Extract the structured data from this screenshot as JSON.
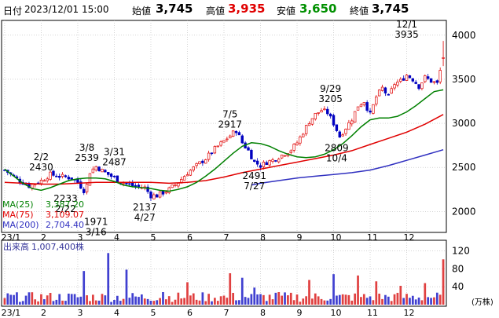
{
  "header": {
    "date_label": "日付",
    "datetime": "2023/12/01 15:00",
    "open_label": "始値",
    "open_value": "3,745",
    "high_label": "高値",
    "high_value": "3,935",
    "low_label": "安値",
    "low_value": "3,650",
    "close_label": "終値",
    "close_value": "3,745"
  },
  "colors": {
    "candle_up": "#e00000",
    "candle_down": "#0000c0",
    "ma25": "#008000",
    "ma75": "#e00000",
    "ma200": "#3030c0",
    "volume_up": "#e04040",
    "volume_down": "#4040d0"
  },
  "chart_data": [
    {
      "type": "candlestick",
      "x_ticks": [
        "23/1",
        "2",
        "3",
        "4",
        "5",
        "6",
        "7",
        "8",
        "9",
        "10",
        "11",
        "12"
      ],
      "y_ticks": [
        2000,
        2500,
        3000,
        3500,
        4000
      ],
      "ylim": [
        1780,
        4150
      ],
      "grid": true,
      "legend_position": "bottom-left",
      "series": [
        {
          "name": "MA(25)",
          "value": "3,387.20",
          "points": [
            [
              0,
              2480
            ],
            [
              3,
              2400
            ],
            [
              6,
              2320
            ],
            [
              9,
              2260
            ],
            [
              12,
              2240
            ],
            [
              15,
              2270
            ],
            [
              18,
              2310
            ],
            [
              21,
              2350
            ],
            [
              24,
              2370
            ],
            [
              27,
              2380
            ],
            [
              30,
              2380
            ],
            [
              33,
              2370
            ],
            [
              36,
              2340
            ],
            [
              39,
              2300
            ],
            [
              42,
              2280
            ],
            [
              45,
              2270
            ],
            [
              48,
              2260
            ],
            [
              51,
              2240
            ],
            [
              54,
              2230
            ],
            [
              57,
              2250
            ],
            [
              60,
              2280
            ],
            [
              63,
              2330
            ],
            [
              66,
              2400
            ],
            [
              69,
              2480
            ],
            [
              72,
              2570
            ],
            [
              75,
              2660
            ],
            [
              78,
              2740
            ],
            [
              81,
              2780
            ],
            [
              84,
              2770
            ],
            [
              87,
              2740
            ],
            [
              90,
              2690
            ],
            [
              93,
              2650
            ],
            [
              96,
              2620
            ],
            [
              99,
              2610
            ],
            [
              102,
              2620
            ],
            [
              105,
              2650
            ],
            [
              108,
              2700
            ],
            [
              111,
              2770
            ],
            [
              114,
              2860
            ],
            [
              117,
              2960
            ],
            [
              120,
              3040
            ],
            [
              123,
              3060
            ],
            [
              126,
              3060
            ],
            [
              129,
              3080
            ],
            [
              132,
              3130
            ],
            [
              135,
              3200
            ],
            [
              138,
              3280
            ],
            [
              141,
              3360
            ],
            [
              144,
              3380
            ]
          ]
        },
        {
          "name": "MA(75)",
          "value": "3,109.07",
          "points": [
            [
              0,
              2330
            ],
            [
              6,
              2320
            ],
            [
              12,
              2310
            ],
            [
              18,
              2310
            ],
            [
              24,
              2320
            ],
            [
              30,
              2330
            ],
            [
              36,
              2330
            ],
            [
              42,
              2330
            ],
            [
              48,
              2330
            ],
            [
              54,
              2320
            ],
            [
              60,
              2330
            ],
            [
              66,
              2350
            ],
            [
              72,
              2390
            ],
            [
              78,
              2440
            ],
            [
              84,
              2480
            ],
            [
              90,
              2520
            ],
            [
              96,
              2560
            ],
            [
              102,
              2600
            ],
            [
              108,
              2640
            ],
            [
              114,
              2690
            ],
            [
              120,
              2760
            ],
            [
              126,
              2830
            ],
            [
              132,
              2900
            ],
            [
              138,
              2990
            ],
            [
              144,
              3100
            ]
          ]
        },
        {
          "name": "MA(200)",
          "value": "2,704.40",
          "points": [
            [
              81,
              2300
            ],
            [
              84,
              2320
            ],
            [
              90,
              2350
            ],
            [
              96,
              2380
            ],
            [
              102,
              2400
            ],
            [
              108,
              2420
            ],
            [
              114,
              2440
            ],
            [
              120,
              2470
            ],
            [
              126,
              2520
            ],
            [
              132,
              2580
            ],
            [
              138,
              2640
            ],
            [
              144,
              2700
            ]
          ]
        }
      ],
      "close_waypoints": [
        [
          0,
          2470
        ],
        [
          4,
          2370
        ],
        [
          8,
          2290
        ],
        [
          12,
          2350
        ],
        [
          15,
          2420
        ],
        [
          18,
          2400
        ],
        [
          22,
          2380
        ],
        [
          24,
          2330
        ],
        [
          26,
          2240
        ],
        [
          27,
          2300
        ],
        [
          28,
          2450
        ],
        [
          30,
          2510
        ],
        [
          33,
          2440
        ],
        [
          35,
          2400
        ],
        [
          38,
          2340
        ],
        [
          42,
          2290
        ],
        [
          46,
          2270
        ],
        [
          48,
          2180
        ],
        [
          50,
          2180
        ],
        [
          54,
          2250
        ],
        [
          57,
          2330
        ],
        [
          60,
          2440
        ],
        [
          63,
          2520
        ],
        [
          66,
          2600
        ],
        [
          69,
          2710
        ],
        [
          72,
          2800
        ],
        [
          75,
          2890
        ],
        [
          76,
          2920
        ],
        [
          78,
          2780
        ],
        [
          80,
          2690
        ],
        [
          82,
          2560
        ],
        [
          84,
          2520
        ],
        [
          86,
          2560
        ],
        [
          88,
          2580
        ],
        [
          90,
          2620
        ],
        [
          92,
          2660
        ],
        [
          94,
          2700
        ],
        [
          96,
          2780
        ],
        [
          98,
          2900
        ],
        [
          100,
          3020
        ],
        [
          102,
          3100
        ],
        [
          104,
          3150
        ],
        [
          106,
          3120
        ],
        [
          108,
          3000
        ],
        [
          110,
          2850
        ],
        [
          112,
          2950
        ],
        [
          114,
          3050
        ],
        [
          116,
          3200
        ],
        [
          118,
          3250
        ],
        [
          120,
          3100
        ],
        [
          122,
          3300
        ],
        [
          124,
          3400
        ],
        [
          126,
          3300
        ],
        [
          128,
          3450
        ],
        [
          130,
          3480
        ],
        [
          132,
          3550
        ],
        [
          134,
          3500
        ],
        [
          136,
          3420
        ],
        [
          138,
          3520
        ],
        [
          140,
          3480
        ],
        [
          142,
          3450
        ],
        [
          144,
          3745
        ]
      ],
      "last_candle": {
        "open": 3745,
        "high": 3935,
        "low": 3650,
        "close": 3745
      },
      "annotations": [
        {
          "date": "2/2",
          "value": "2430",
          "pos": "above"
        },
        {
          "date": "2/22",
          "value": "2233",
          "pos": "below"
        },
        {
          "date": "3/8",
          "value": "2539",
          "pos": "above"
        },
        {
          "date": "3/16",
          "value": "1971",
          "pos": "below"
        },
        {
          "date": "3/31",
          "value": "2487",
          "pos": "above"
        },
        {
          "date": "4/27",
          "value": "2137",
          "pos": "below"
        },
        {
          "date": "7/5",
          "value": "2917",
          "pos": "above"
        },
        {
          "date": "7/27",
          "value": "2491",
          "pos": "below"
        },
        {
          "date": "9/29",
          "value": "3205",
          "pos": "above"
        },
        {
          "date": "10/4",
          "value": "2809",
          "pos": "below"
        },
        {
          "date": "12/1",
          "value": "3935",
          "pos": "above"
        }
      ]
    },
    {
      "type": "bar",
      "label": "出来高",
      "latest": "1,007,400株",
      "unit": "(万株)",
      "y_ticks": [
        40,
        80,
        120
      ],
      "ylim": [
        0,
        140
      ],
      "spikes": [
        [
          26,
          75
        ],
        [
          34,
          115
        ],
        [
          40,
          78
        ],
        [
          52,
          28
        ],
        [
          60,
          50
        ],
        [
          74,
          70
        ],
        [
          78,
          60
        ],
        [
          82,
          38
        ],
        [
          90,
          28
        ],
        [
          100,
          55
        ],
        [
          108,
          68
        ],
        [
          116,
          65
        ],
        [
          122,
          52
        ],
        [
          130,
          42
        ],
        [
          138,
          48
        ],
        [
          144,
          101
        ]
      ]
    }
  ]
}
